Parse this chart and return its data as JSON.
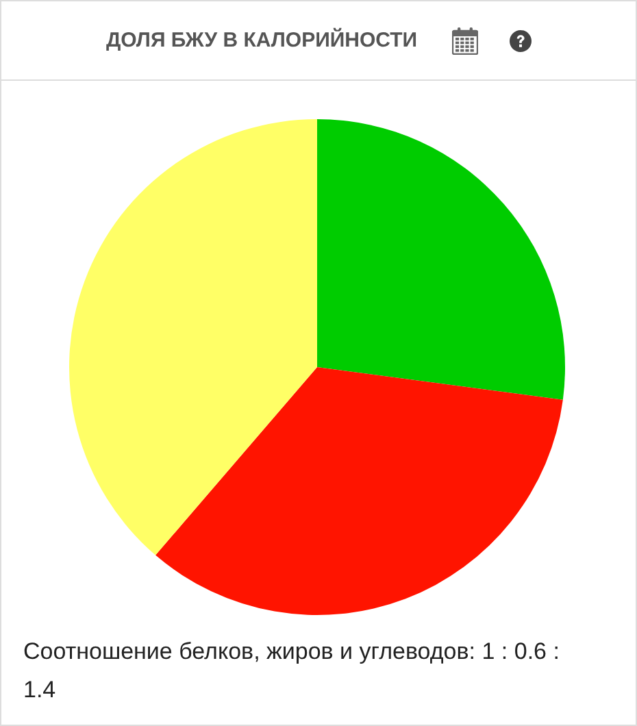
{
  "chart_data": {
    "type": "pie",
    "title": "ДОЛЯ БЖУ В КАЛОРИЙНОСТИ",
    "categories": [
      null,
      null,
      null
    ],
    "values": [
      27.1,
      34.2,
      38.7
    ],
    "colors": [
      "#00cc00",
      "#ff1400",
      "#ffff66"
    ],
    "annotations": [
      "Соотношение белков, жиров и углеводов: 1 : 0.6 : 1.4"
    ]
  }
}
